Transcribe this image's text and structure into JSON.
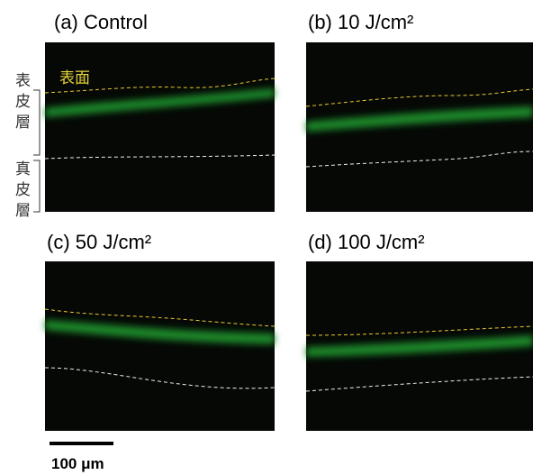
{
  "panels": [
    {
      "label": "(a) Control"
    },
    {
      "label": "(b) 10 J/cm²"
    },
    {
      "label": "(c) 50 J/cm²"
    },
    {
      "label": "(d) 100 J/cm²"
    }
  ],
  "layers": {
    "surface": "表面",
    "epidermis": "表皮層",
    "dermis": "真皮層"
  },
  "scale_bar": {
    "label": "100 μm"
  }
}
